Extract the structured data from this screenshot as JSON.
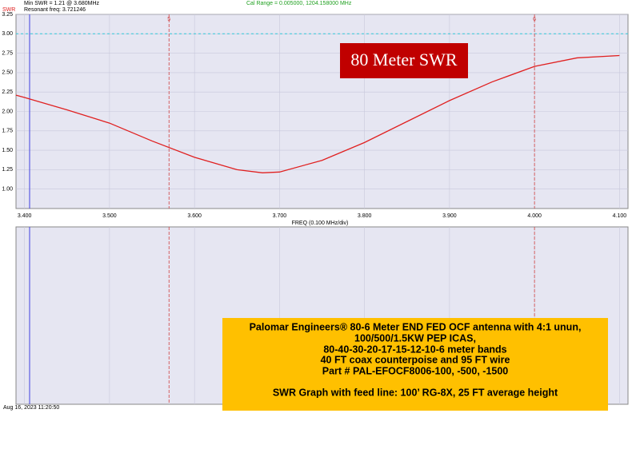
{
  "header": {
    "min_swr": "Min SWR =   1.21 @  3.680MHz",
    "resonant": "Resonant freq:  3.721246",
    "cal_range": "Cal Range = 0.005000,  1204.158000 MHz",
    "timestamp": "Aug 16, 2023  11:20:50"
  },
  "chart_data": {
    "type": "line",
    "title": "80 Meter SWR",
    "y_label": "SWR",
    "x_label": "FREQ (0.100 MHz/div)",
    "x": [
      3.39,
      3.4,
      3.45,
      3.5,
      3.55,
      3.6,
      3.65,
      3.68,
      3.7,
      3.75,
      3.8,
      3.85,
      3.9,
      3.95,
      4.0,
      4.05,
      4.1
    ],
    "values": [
      2.21,
      2.18,
      2.02,
      1.85,
      1.62,
      1.41,
      1.25,
      1.21,
      1.22,
      1.37,
      1.6,
      1.87,
      2.14,
      2.38,
      2.58,
      2.69,
      2.72
    ],
    "color": "#e02020",
    "xlim": [
      3.39,
      4.11
    ],
    "ylim": [
      0.75,
      3.25
    ],
    "xticks": [
      {
        "value": 3.4,
        "label": "3.400"
      },
      {
        "value": 3.5,
        "label": "3.500"
      },
      {
        "value": 3.6,
        "label": "3.600"
      },
      {
        "value": 3.7,
        "label": "3.700"
      },
      {
        "value": 3.8,
        "label": "3.800"
      },
      {
        "value": 3.9,
        "label": "3.900"
      },
      {
        "value": 4.0,
        "label": "4.000"
      },
      {
        "value": 4.1,
        "label": "4.100"
      }
    ],
    "yticks": [
      {
        "value": 1,
        "label": "1.00"
      },
      1.25,
      {
        "value": 1.5,
        "label": "1.50"
      },
      1.75,
      {
        "value": 2,
        "label": "2.00"
      },
      2.25,
      {
        "value": 2.5,
        "label": "2.50"
      },
      2.75,
      {
        "value": 3,
        "label": "3.00"
      },
      3.25
    ],
    "grid": true,
    "ref_y": 3.0,
    "ref_color": "#30c8d8",
    "cursor_x": 3.406,
    "cursor_color": "#4040e0",
    "markers": [
      {
        "label": "5",
        "x": 3.57
      },
      {
        "label": "6",
        "x": 4.0
      }
    ],
    "marker_color": "#d04040",
    "info": [
      "Palomar Engineers® 80-6 Meter END FED OCF antenna with 4:1 unun,",
      "100/500/1.5KW PEP ICAS,",
      "80-40-30-20-17-15-12-10-6 meter bands",
      "40 FT coax counterpoise and 95 FT wire",
      "Part # PAL-EFOCF8006-100, -500, -1500",
      "SWR Graph with feed line: 100’ RG-8X, 25 FT average height"
    ]
  }
}
